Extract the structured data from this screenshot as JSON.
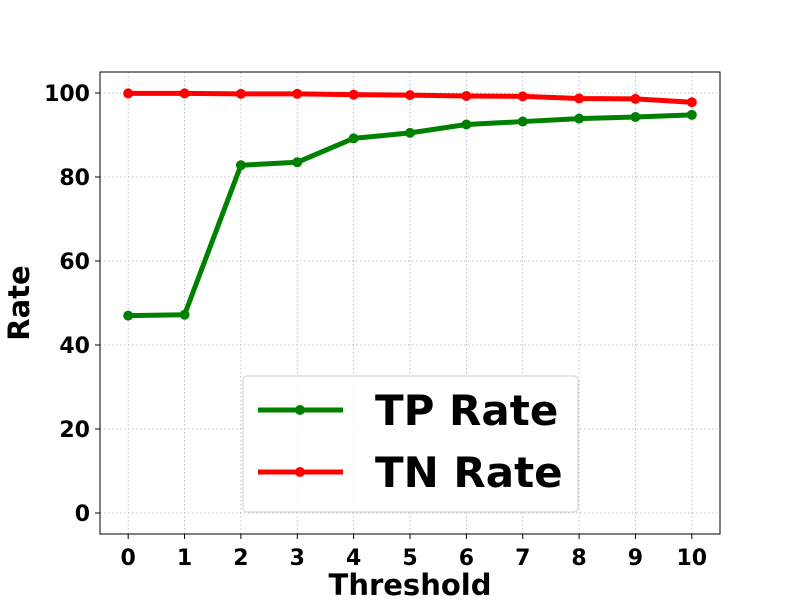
{
  "chart_data": {
    "type": "line",
    "xlabel": "Threshold",
    "ylabel": "Rate",
    "x": [
      0,
      1,
      2,
      3,
      4,
      5,
      6,
      7,
      8,
      9,
      10
    ],
    "xlim": [
      -0.5,
      10.5
    ],
    "ylim": [
      -5,
      105
    ],
    "yticks": [
      0,
      20,
      40,
      60,
      80,
      100
    ],
    "grid": true,
    "legend_position": "lower-center",
    "series": [
      {
        "name": "TP Rate",
        "color": "#008000",
        "values": [
          47.0,
          47.2,
          82.8,
          83.5,
          89.2,
          90.5,
          92.5,
          93.2,
          93.9,
          94.3,
          94.8
        ]
      },
      {
        "name": "TN Rate",
        "color": "#ff0000",
        "values": [
          99.9,
          99.9,
          99.8,
          99.8,
          99.6,
          99.5,
          99.3,
          99.2,
          98.7,
          98.6,
          97.8
        ]
      }
    ]
  }
}
